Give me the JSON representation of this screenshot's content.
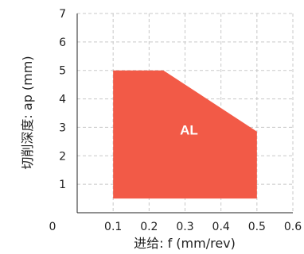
{
  "chart_data": {
    "type": "area",
    "xlabel": "进给: f (mm/rev)",
    "ylabel": "切削深度: ap (mm)",
    "xlim": [
      0,
      0.6
    ],
    "ylim": [
      0,
      7
    ],
    "x_ticks": [
      0,
      0.1,
      0.2,
      0.3,
      0.4,
      0.5,
      0.6
    ],
    "x_tick_labels": [
      "0",
      "0.1",
      "0.2",
      "0.3",
      "0.4",
      "0.5",
      "0.6"
    ],
    "y_ticks": [
      1,
      2,
      3,
      4,
      5,
      6,
      7
    ],
    "y_tick_labels": [
      "1",
      "2",
      "3",
      "4",
      "5",
      "6",
      "7"
    ],
    "grid": true,
    "regions": [
      {
        "label": "AL",
        "color": "#f25a47",
        "polygon": [
          {
            "x": 0.1,
            "y": 0.5
          },
          {
            "x": 0.1,
            "y": 5.0
          },
          {
            "x": 0.24,
            "y": 5.0
          },
          {
            "x": 0.5,
            "y": 2.85
          },
          {
            "x": 0.5,
            "y": 0.5
          }
        ]
      }
    ]
  }
}
